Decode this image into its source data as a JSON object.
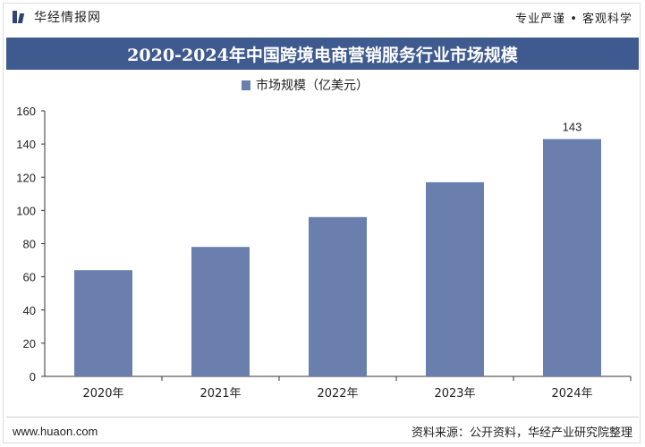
{
  "header": {
    "brand": "华经情报网",
    "tagline": "专业严谨 • 客观科学"
  },
  "title": "2020-2024年中国跨境电商营销服务行业市场规模",
  "colors": {
    "bar": "#6b7fae",
    "title_bg": "#3f5a8f",
    "axis": "#333333"
  },
  "chart_data": {
    "type": "bar",
    "categories": [
      "2020年",
      "2021年",
      "2022年",
      "2023年",
      "2024年"
    ],
    "series": [
      {
        "name": "市场规模（亿美元）",
        "values": [
          64,
          78,
          96,
          117,
          143
        ]
      }
    ],
    "data_labels": {
      "2024年": "143"
    },
    "ylim": [
      0,
      160
    ],
    "yticks": [
      0,
      20,
      40,
      60,
      80,
      100,
      120,
      140,
      160
    ],
    "grid": false,
    "legend": "top"
  },
  "footer": {
    "url": "www.huaon.com",
    "source": "资料来源：公开资料，华经产业研究院整理"
  }
}
